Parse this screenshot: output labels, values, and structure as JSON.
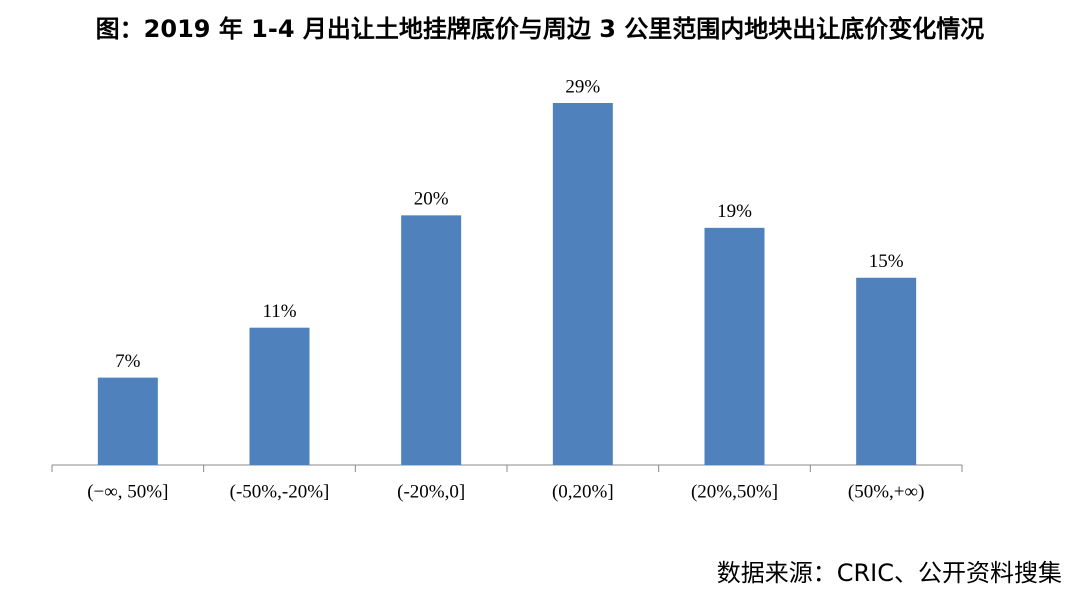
{
  "chart_data": {
    "type": "bar",
    "title": "图：2019 年 1-4 月出让土地挂牌底价与周边 3 公里范围内地块出让底价变化情况",
    "categories": [
      "(−∞, 50%]",
      "(-50%,-20%]",
      "(-20%,0]",
      "(0,20%]",
      "(20%,50%]",
      "(50%,+∞)"
    ],
    "values": [
      7,
      11,
      20,
      29,
      19,
      15
    ],
    "value_labels": [
      "7%",
      "11%",
      "20%",
      "29%",
      "19%",
      "15%"
    ],
    "color": "#4f81bd",
    "source": "数据来源：CRIC、公开资料搜集"
  }
}
